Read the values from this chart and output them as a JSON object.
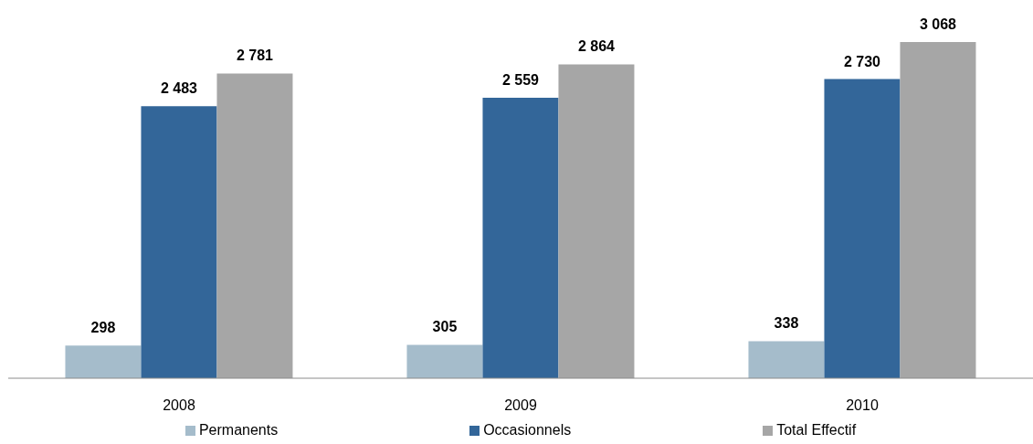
{
  "chart_data": {
    "type": "bar",
    "categories": [
      "2008",
      "2009",
      "2010"
    ],
    "series": [
      {
        "name": "Permanents",
        "color": "#a5bccb",
        "values": [
          298,
          305,
          338
        ],
        "value_labels": [
          "298",
          "305",
          "338"
        ]
      },
      {
        "name": "Occasionnels",
        "color": "#336699",
        "values": [
          2483,
          2559,
          2730
        ],
        "value_labels": [
          "2 483",
          "2 559",
          "2 730"
        ]
      },
      {
        "name": "Total Effectif",
        "color": "#a6a6a6",
        "values": [
          2781,
          2864,
          3068
        ],
        "value_labels": [
          "2 781",
          "2 864",
          "3 068"
        ]
      }
    ],
    "legend": "bottom",
    "grid": false
  }
}
